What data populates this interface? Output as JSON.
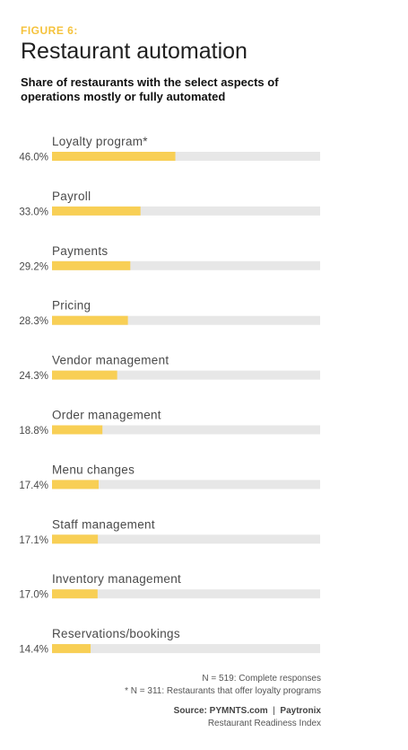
{
  "figure_label": "FIGURE 6:",
  "title": "Restaurant automation",
  "subtitle": "Share of restaurants with the select aspects of operations mostly or fully automated",
  "colors": {
    "accent": "#f5c23b",
    "bar": "#f8cf55",
    "track": "#e7e7e7"
  },
  "chart_data": {
    "type": "bar",
    "orientation": "horizontal",
    "categories": [
      "Loyalty program*",
      "Payroll",
      "Payments",
      "Pricing",
      "Vendor management",
      "Order management",
      "Menu changes",
      "Staff management",
      "Inventory management",
      "Reservations/bookings"
    ],
    "values": [
      46.0,
      33.0,
      29.2,
      28.3,
      24.3,
      18.8,
      17.4,
      17.1,
      17.0,
      14.4
    ],
    "value_labels": [
      "46.0%",
      "33.0%",
      "29.2%",
      "28.3%",
      "24.3%",
      "18.8%",
      "17.4%",
      "17.1%",
      "17.0%",
      "14.4%"
    ],
    "xlim": [
      0,
      100
    ],
    "grid": false,
    "legend": "none"
  },
  "notes": {
    "n": "N = 519: Complete responses",
    "star": "* N = 311: Restaurants that offer loyalty programs"
  },
  "source": {
    "label": "Source: PYMNTS.com",
    "separator": "|",
    "partner": "Paytronix",
    "index": "Restaurant Readiness Index"
  }
}
